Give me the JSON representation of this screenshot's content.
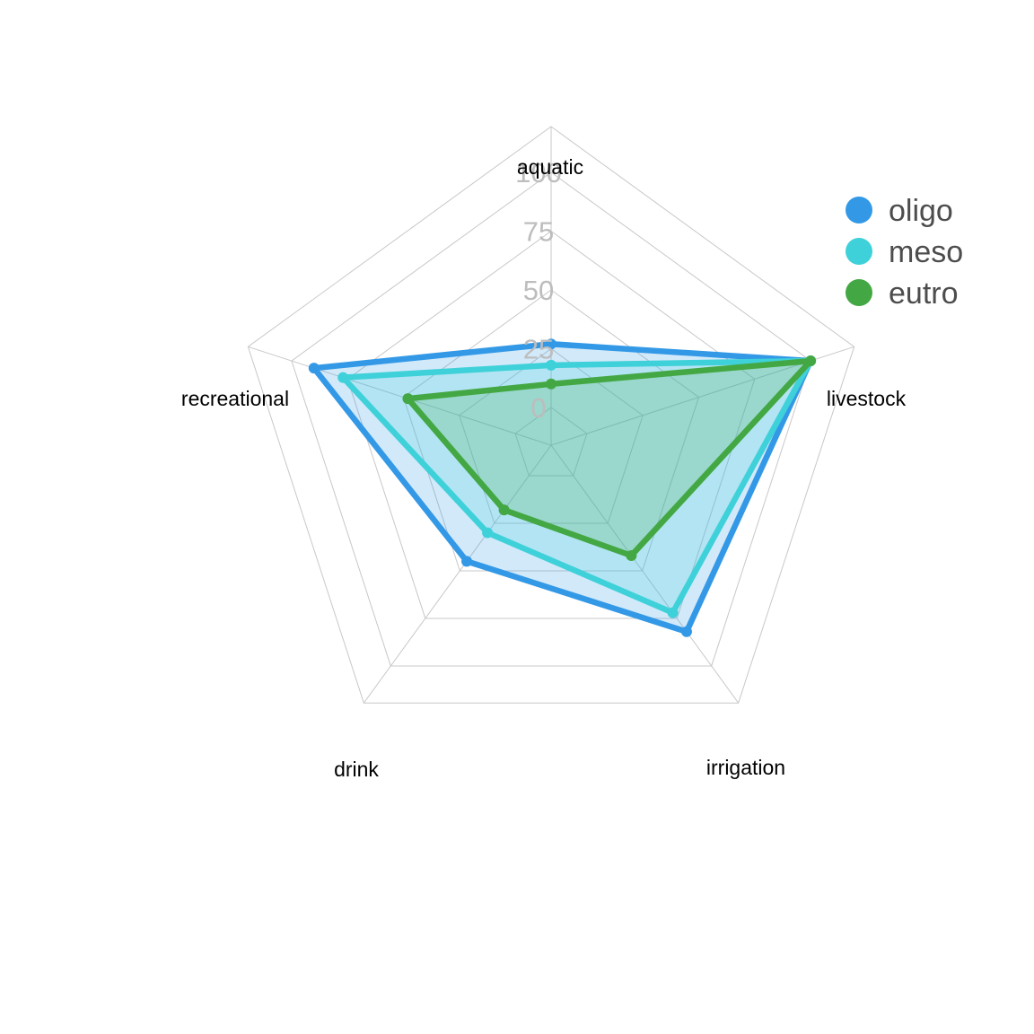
{
  "chart_data": {
    "type": "radar",
    "axes": [
      "aquatic",
      "livestock",
      "irrigation",
      "drink",
      "recreational"
    ],
    "ticks": [
      "0",
      "25",
      "50",
      "75",
      "100"
    ],
    "rlim": [
      0,
      100
    ],
    "grid": true,
    "legend_position": "top-right",
    "series": [
      {
        "name": "oligo",
        "color": "#3399e6",
        "values": [
          27,
          100,
          82,
          45,
          90
        ]
      },
      {
        "name": "meso",
        "color": "#3fd1d9",
        "values": [
          18,
          100,
          72,
          30,
          77
        ]
      },
      {
        "name": "eutro",
        "color": "#43a843",
        "values": [
          10,
          100,
          42,
          18,
          48
        ]
      }
    ]
  }
}
